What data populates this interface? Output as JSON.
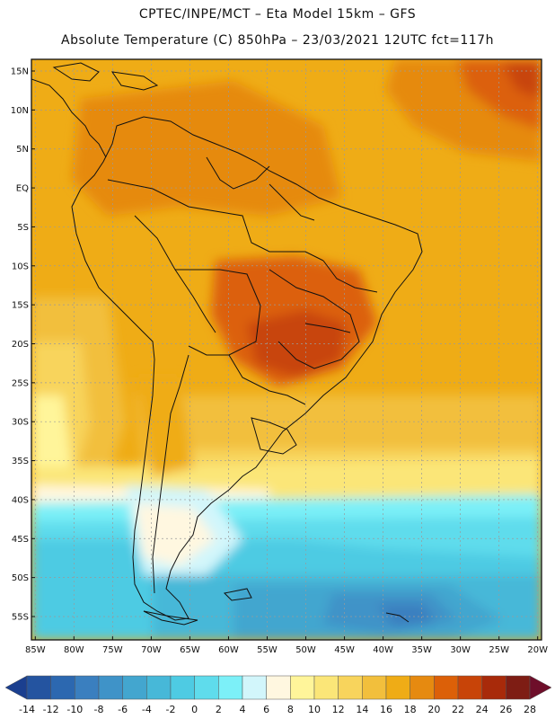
{
  "header": {
    "line1": "CPTEC/INPE/MCT –  Eta Model 15km – GFS",
    "line2": "Absolute Temperature (C) 850hPa – 23/03/2021 12UTC fct=117h"
  },
  "map": {
    "lat_labels": [
      "15N",
      "10N",
      "5N",
      "EQ",
      "5S",
      "10S",
      "15S",
      "20S",
      "25S",
      "30S",
      "35S",
      "40S",
      "45S",
      "50S",
      "55S"
    ],
    "lat_values": [
      15,
      10,
      5,
      0,
      -5,
      -10,
      -15,
      -20,
      -25,
      -30,
      -35,
      -40,
      -45,
      -50,
      -55
    ],
    "lon_labels": [
      "85W",
      "80W",
      "75W",
      "70W",
      "65W",
      "60W",
      "55W",
      "50W",
      "45W",
      "40W",
      "35W",
      "30W",
      "25W",
      "20W"
    ],
    "lon_values": [
      -85,
      -80,
      -75,
      -70,
      -65,
      -60,
      -55,
      -50,
      -45,
      -40,
      -35,
      -30,
      -25,
      -20
    ],
    "extent": {
      "lon_min": -85.5,
      "lon_max": -19.5,
      "lat_min": -58,
      "lat_max": 16.5
    }
  },
  "colorbar": {
    "levels": [
      "-14",
      "-12",
      "-10",
      "-8",
      "-6",
      "-4",
      "-2",
      "0",
      "2",
      "4",
      "6",
      "8",
      "10",
      "12",
      "14",
      "16",
      "18",
      "20",
      "22",
      "24",
      "26",
      "28"
    ],
    "colors": [
      "#1b3f8f",
      "#2454a0",
      "#2c68b0",
      "#3a7fbf",
      "#3f93c8",
      "#43a6cf",
      "#47b8d8",
      "#4ecbe3",
      "#5fdcec",
      "#7cf0f8",
      "#d2f6fb",
      "#fff7e0",
      "#fff59a",
      "#fbe678",
      "#f8d45c",
      "#f2bf3c",
      "#efac16",
      "#e68a10",
      "#dc6008",
      "#c84408",
      "#a82a0a",
      "#7e1d14",
      "#6e0e2a"
    ]
  }
}
